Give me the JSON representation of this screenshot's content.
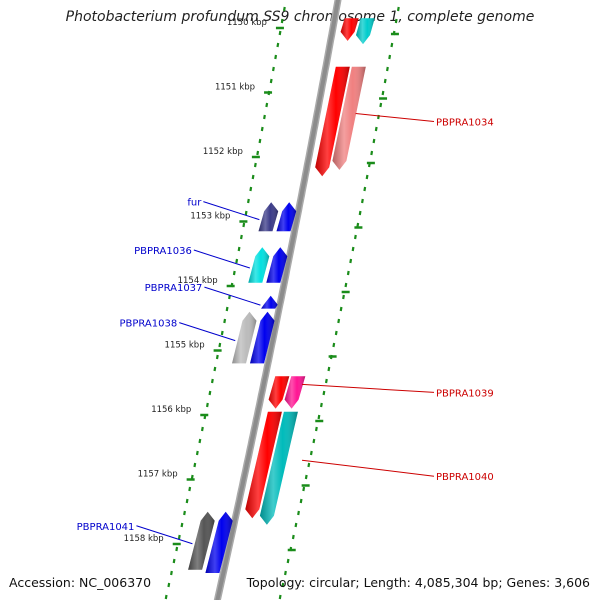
{
  "title": "Photobacterium profundum SS9 chromosome 1, complete genome",
  "footer": {
    "accession": "Accession: NC_006370",
    "topology": "Topology: circular; Length: 4,085,304 bp; Genes: 3,606"
  },
  "colors": {
    "backbone": "#8c8c8c",
    "dotted_track": "#1a8c1a",
    "left_label": "#0000cc",
    "right_label": "#cc0000"
  },
  "ticks": [
    {
      "label": "1150 kbp",
      "kbp": 1150
    },
    {
      "label": "1151 kbp",
      "kbp": 1151
    },
    {
      "label": "1152 kbp",
      "kbp": 1152
    },
    {
      "label": "1153 kbp",
      "kbp": 1153
    },
    {
      "label": "1154 kbp",
      "kbp": 1154
    },
    {
      "label": "1155 kbp",
      "kbp": 1155
    },
    {
      "label": "1156 kbp",
      "kbp": 1156
    },
    {
      "label": "1157 kbp",
      "kbp": 1157
    },
    {
      "label": "1158 kbp",
      "kbp": 1158
    }
  ],
  "genes": [
    {
      "name": "",
      "strand": "reverse",
      "lane": "outer",
      "color": "#ff0000",
      "start_kbp": 1149.85,
      "end_kbp": 1150.2,
      "labeled": false
    },
    {
      "name": "",
      "strand": "reverse",
      "lane": "inner",
      "color": "#00cccc",
      "start_kbp": 1149.85,
      "end_kbp": 1150.25,
      "labeled": false
    },
    {
      "name": "PBPRA1034",
      "strand": "reverse",
      "lane": "outer",
      "color": "#ff0000",
      "start_kbp": 1150.6,
      "end_kbp": 1152.3,
      "labeled": true
    },
    {
      "name": "",
      "strand": "reverse",
      "lane": "inner",
      "color": "#f08080",
      "start_kbp": 1150.6,
      "end_kbp": 1152.2,
      "labeled": false
    },
    {
      "name": "fur",
      "strand": "forward",
      "lane": "outer",
      "color": "#3a3a88",
      "start_kbp": 1152.7,
      "end_kbp": 1153.15,
      "labeled": true
    },
    {
      "name": "",
      "strand": "forward",
      "lane": "inner",
      "color": "#0000ee",
      "start_kbp": 1152.7,
      "end_kbp": 1153.15,
      "labeled": false
    },
    {
      "name": "PBPRA1036",
      "strand": "forward",
      "lane": "outer",
      "color": "#00e0e0",
      "start_kbp": 1153.4,
      "end_kbp": 1153.95,
      "labeled": true
    },
    {
      "name": "",
      "strand": "forward",
      "lane": "inner",
      "color": "#0000ee",
      "start_kbp": 1153.4,
      "end_kbp": 1153.95,
      "labeled": false
    },
    {
      "name": "PBPRA1037",
      "strand": "forward",
      "lane": "inner",
      "color": "#0000ee",
      "start_kbp": 1154.15,
      "end_kbp": 1154.35,
      "labeled": true
    },
    {
      "name": "PBPRA1038",
      "strand": "forward",
      "lane": "outer",
      "color": "#bbbbbb",
      "start_kbp": 1154.4,
      "end_kbp": 1155.2,
      "labeled": true
    },
    {
      "name": "",
      "strand": "forward",
      "lane": "inner",
      "color": "#0000ee",
      "start_kbp": 1154.4,
      "end_kbp": 1155.2,
      "labeled": false
    },
    {
      "name": "PBPRA1039",
      "strand": "reverse",
      "lane": "outer",
      "color": "#ff0000",
      "start_kbp": 1155.4,
      "end_kbp": 1155.9,
      "labeled": true
    },
    {
      "name": "",
      "strand": "reverse",
      "lane": "inner",
      "color": "#ff1493",
      "start_kbp": 1155.4,
      "end_kbp": 1155.9,
      "labeled": false
    },
    {
      "name": "",
      "strand": "reverse",
      "lane": "outer",
      "color": "#ff0000",
      "start_kbp": 1155.95,
      "end_kbp": 1157.6,
      "labeled": false
    },
    {
      "name": "PBPRA1040",
      "strand": "reverse",
      "lane": "inner",
      "color": "#00bbbb",
      "start_kbp": 1155.95,
      "end_kbp": 1157.7,
      "labeled": true
    },
    {
      "name": "PBPRA1041",
      "strand": "forward",
      "lane": "outer",
      "color": "#555555",
      "start_kbp": 1157.5,
      "end_kbp": 1158.4,
      "labeled": true
    },
    {
      "name": "",
      "strand": "forward",
      "lane": "inner",
      "color": "#0000ee",
      "start_kbp": 1157.5,
      "end_kbp": 1158.45,
      "labeled": false
    }
  ]
}
